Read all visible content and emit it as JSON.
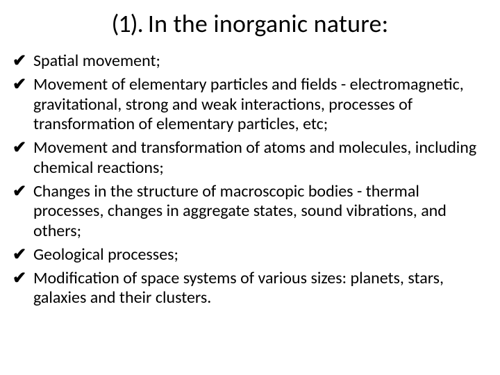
{
  "slide": {
    "title_prefix": "(1). ",
    "title_main": "In the inorganic nature:",
    "bullet_glyph": "✔",
    "items": [
      " Spatial movement;",
      " Movement of elementary particles and fields - electromagnetic, gravitational, strong and weak interactions, processes of transformation of elementary particles, etc;",
      " Movement and transformation of atoms and molecules, including chemical reactions;",
      " Changes in the structure of macroscopic bodies - thermal processes, changes in aggregate states, sound vibrations, and others;",
      " Geological processes;",
      " Modification of space systems of various sizes: planets, stars, galaxies and their clusters."
    ],
    "colors": {
      "background": "#ffffff",
      "text": "#000000",
      "bullet": "#000000"
    },
    "typography": {
      "title_fontsize_pt": 36,
      "body_fontsize_pt": 24,
      "font_family": "Calibri"
    }
  }
}
